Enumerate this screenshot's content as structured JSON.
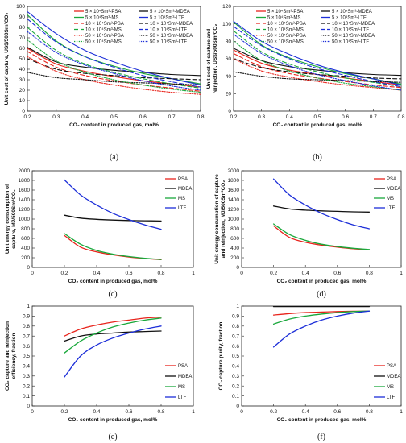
{
  "figure": {
    "palette": {
      "PSA": "#e8241c",
      "MDEA": "#111111",
      "MS": "#19a83b",
      "LTF": "#1c2ed8"
    }
  },
  "chart_data": [
    {
      "id": "a",
      "panel_label": "(a)",
      "type": "line",
      "xlabel": "CO₂ content in produced gas, mol%",
      "ylabel": "Unit cost of capture, US$/500Sm³CO₂",
      "xlim": [
        0.2,
        0.8
      ],
      "ylim": [
        0,
        100
      ],
      "xticks": [
        0.2,
        0.3,
        0.4,
        0.5,
        0.6,
        0.7,
        0.8
      ],
      "yticks": [
        0,
        10,
        20,
        30,
        40,
        50,
        60,
        70,
        80,
        90,
        100
      ],
      "x": [
        0.2,
        0.3,
        0.4,
        0.5,
        0.6,
        0.7,
        0.8
      ],
      "legend": {
        "position": "top",
        "columns": 2
      },
      "series": [
        {
          "name": "5 × 10⁴Sm³-PSA",
          "group": "PSA",
          "dash": "solid",
          "values": [
            60,
            45,
            38,
            33,
            29,
            26,
            23
          ]
        },
        {
          "name": "5 × 10⁴Sm³-MDEA",
          "group": "MDEA",
          "dash": "solid",
          "values": [
            61,
            47,
            42,
            39,
            37,
            35,
            34
          ]
        },
        {
          "name": "5 × 10⁴Sm³-MS",
          "group": "MS",
          "dash": "solid",
          "values": [
            92,
            67,
            52,
            43,
            36,
            31,
            26
          ]
        },
        {
          "name": "5 × 10⁴Sm³-LTF",
          "group": "LTF",
          "dash": "solid",
          "values": [
            95,
            74,
            58,
            47,
            38,
            31,
            25
          ]
        },
        {
          "name": "10 × 10⁴Sm³-PSA",
          "group": "PSA",
          "dash": "dash",
          "values": [
            57,
            42,
            34,
            29,
            25,
            22,
            19
          ]
        },
        {
          "name": "10 × 10⁴Sm³-MDEA",
          "group": "MDEA",
          "dash": "dash",
          "values": [
            50,
            40,
            36,
            34,
            32,
            31,
            30
          ]
        },
        {
          "name": "10 × 10⁴Sm³-MS",
          "group": "MS",
          "dash": "dash",
          "values": [
            80,
            58,
            45,
            37,
            31,
            26,
            22
          ]
        },
        {
          "name": "10 × 10⁴Sm³-LTF",
          "group": "LTF",
          "dash": "dash",
          "values": [
            88,
            66,
            52,
            42,
            34,
            28,
            23
          ]
        },
        {
          "name": "50 × 10⁴Sm³-PSA",
          "group": "PSA",
          "dash": "dot",
          "values": [
            52,
            38,
            30,
            25,
            21,
            18,
            16
          ]
        },
        {
          "name": "50 × 10⁴Sm³-MDEA",
          "group": "MDEA",
          "dash": "dot",
          "values": [
            37,
            32,
            30,
            28,
            27,
            26,
            25
          ]
        },
        {
          "name": "50 × 10⁴Sm³-MS",
          "group": "MS",
          "dash": "dot",
          "values": [
            68,
            48,
            37,
            30,
            25,
            21,
            18
          ]
        },
        {
          "name": "50 × 10⁴Sm³-LTF",
          "group": "LTF",
          "dash": "dot",
          "values": [
            76,
            56,
            44,
            36,
            29,
            24,
            20
          ]
        }
      ]
    },
    {
      "id": "b",
      "panel_label": "(b)",
      "type": "line",
      "xlabel": "CO₂ content in produced gas, mol%",
      "ylabel": "Unit cost of capture and reinjection, US$/500Sm³CO₂",
      "xlim": [
        0.2,
        0.8
      ],
      "ylim": [
        0,
        120
      ],
      "xticks": [
        0.2,
        0.3,
        0.4,
        0.5,
        0.6,
        0.7,
        0.8
      ],
      "yticks": [
        0,
        20,
        40,
        60,
        80,
        100,
        120
      ],
      "x": [
        0.2,
        0.3,
        0.4,
        0.5,
        0.6,
        0.7,
        0.8
      ],
      "legend": {
        "position": "top",
        "columns": 2
      },
      "series": [
        {
          "name": "5 × 10⁴Sm³-PSA",
          "group": "PSA",
          "dash": "solid",
          "values": [
            70,
            55,
            47,
            42,
            38,
            34,
            30
          ]
        },
        {
          "name": "5 × 10⁴Sm³-MDEA",
          "group": "MDEA",
          "dash": "solid",
          "values": [
            72,
            58,
            51,
            47,
            44,
            42,
            41
          ]
        },
        {
          "name": "5 × 10⁴Sm³-MS",
          "group": "MS",
          "dash": "solid",
          "values": [
            102,
            76,
            61,
            51,
            43,
            37,
            31
          ]
        },
        {
          "name": "5 × 10⁴Sm³-LTF",
          "group": "LTF",
          "dash": "solid",
          "values": [
            103,
            80,
            65,
            53,
            44,
            37,
            30
          ]
        },
        {
          "name": "10 × 10⁴Sm³-PSA",
          "group": "PSA",
          "dash": "dash",
          "values": [
            66,
            51,
            43,
            38,
            34,
            30,
            27
          ]
        },
        {
          "name": "10 × 10⁴Sm³-MDEA",
          "group": "MDEA",
          "dash": "dash",
          "values": [
            60,
            50,
            45,
            42,
            40,
            38,
            37
          ]
        },
        {
          "name": "10 × 10⁴Sm³-MS",
          "group": "MS",
          "dash": "dash",
          "values": [
            92,
            68,
            54,
            45,
            38,
            33,
            28
          ]
        },
        {
          "name": "10 × 10⁴Sm³-LTF",
          "group": "LTF",
          "dash": "dash",
          "values": [
            97,
            75,
            60,
            49,
            41,
            34,
            28
          ]
        },
        {
          "name": "50 × 10⁴Sm³-PSA",
          "group": "PSA",
          "dash": "dot",
          "values": [
            60,
            46,
            39,
            34,
            30,
            27,
            24
          ]
        },
        {
          "name": "50 × 10⁴Sm³-MDEA",
          "group": "MDEA",
          "dash": "dot",
          "values": [
            45,
            40,
            37,
            36,
            35,
            34,
            33
          ]
        },
        {
          "name": "50 × 10⁴Sm³-MS",
          "group": "MS",
          "dash": "dot",
          "values": [
            80,
            58,
            46,
            38,
            32,
            28,
            24
          ]
        },
        {
          "name": "50 × 10⁴Sm³-LTF",
          "group": "LTF",
          "dash": "dot",
          "values": [
            88,
            66,
            52,
            42,
            35,
            29,
            24
          ]
        }
      ]
    },
    {
      "id": "c",
      "panel_label": "(c)",
      "type": "line",
      "xlabel": "CO₂ content in produced gas, mol%",
      "ylabel": "Unit energy consumption of capture, MJ/500Sm³CO₂",
      "xlim": [
        0,
        1
      ],
      "ylim": [
        0,
        2000
      ],
      "xticks": [
        0,
        0.2,
        0.4,
        0.6,
        0.8,
        1
      ],
      "yticks": [
        0,
        200,
        400,
        600,
        800,
        1000,
        1200,
        1400,
        1600,
        1800,
        2000
      ],
      "x": [
        0.2,
        0.3,
        0.4,
        0.5,
        0.6,
        0.7,
        0.8
      ],
      "legend": {
        "position": "right",
        "columns": 1
      },
      "series": [
        {
          "name": "PSA",
          "group": "PSA",
          "dash": "solid",
          "values": [
            660,
            420,
            320,
            260,
            215,
            185,
            160
          ]
        },
        {
          "name": "MDEA",
          "group": "MDEA",
          "dash": "solid",
          "values": [
            1080,
            1020,
            995,
            980,
            970,
            965,
            960
          ]
        },
        {
          "name": "MS",
          "group": "MS",
          "dash": "solid",
          "values": [
            700,
            480,
            350,
            275,
            225,
            190,
            165
          ]
        },
        {
          "name": "LTF",
          "group": "LTF",
          "dash": "solid",
          "values": [
            1810,
            1500,
            1290,
            1120,
            990,
            880,
            790
          ]
        }
      ]
    },
    {
      "id": "d",
      "panel_label": "(d)",
      "type": "line",
      "xlabel": "CO₂ content in produced gas, mol%",
      "ylabel": "Unit energy consumption of capture and reinjection, MJ/500Sm³CO₂",
      "xlim": [
        0,
        1
      ],
      "ylim": [
        0,
        2000
      ],
      "xticks": [
        0,
        0.2,
        0.4,
        0.6,
        0.8,
        1
      ],
      "yticks": [
        0,
        200,
        400,
        600,
        800,
        1000,
        1200,
        1400,
        1600,
        1800,
        2000
      ],
      "x": [
        0.2,
        0.3,
        0.4,
        0.5,
        0.6,
        0.7,
        0.8
      ],
      "legend": {
        "position": "right",
        "columns": 1
      },
      "series": [
        {
          "name": "PSA",
          "group": "PSA",
          "dash": "solid",
          "values": [
            860,
            620,
            520,
            460,
            420,
            385,
            360
          ]
        },
        {
          "name": "MDEA",
          "group": "MDEA",
          "dash": "solid",
          "values": [
            1270,
            1210,
            1185,
            1170,
            1160,
            1150,
            1145
          ]
        },
        {
          "name": "MS",
          "group": "MS",
          "dash": "solid",
          "values": [
            900,
            680,
            560,
            480,
            430,
            395,
            370
          ]
        },
        {
          "name": "LTF",
          "group": "LTF",
          "dash": "solid",
          "values": [
            1830,
            1500,
            1290,
            1120,
            990,
            880,
            800
          ]
        }
      ]
    },
    {
      "id": "e",
      "panel_label": "(e)",
      "type": "line",
      "xlabel": "CO₂ content in produced gas, mol%",
      "ylabel": "CO₂ capture and reinjection efficiency, fraction",
      "xlim": [
        0,
        1
      ],
      "ylim": [
        0,
        1
      ],
      "xticks": [
        0,
        0.2,
        0.4,
        0.6,
        0.8,
        1
      ],
      "yticks": [
        0,
        0.1,
        0.2,
        0.3,
        0.4,
        0.5,
        0.6,
        0.7,
        0.8,
        0.9,
        1
      ],
      "x": [
        0.2,
        0.3,
        0.4,
        0.5,
        0.6,
        0.7,
        0.8
      ],
      "legend": {
        "position": "right",
        "columns": 1
      },
      "series": [
        {
          "name": "PSA",
          "group": "PSA",
          "dash": "solid",
          "values": [
            0.7,
            0.77,
            0.81,
            0.84,
            0.86,
            0.88,
            0.89
          ]
        },
        {
          "name": "MDEA",
          "group": "MDEA",
          "dash": "solid",
          "values": [
            0.65,
            0.7,
            0.72,
            0.73,
            0.74,
            0.745,
            0.75
          ]
        },
        {
          "name": "MS",
          "group": "MS",
          "dash": "solid",
          "values": [
            0.53,
            0.65,
            0.73,
            0.79,
            0.83,
            0.86,
            0.88
          ]
        },
        {
          "name": "LTF",
          "group": "LTF",
          "dash": "solid",
          "values": [
            0.29,
            0.5,
            0.61,
            0.68,
            0.73,
            0.77,
            0.8
          ]
        }
      ]
    },
    {
      "id": "f",
      "panel_label": "(f)",
      "type": "line",
      "xlabel": "CO₂ content in produced gas, mol%",
      "ylabel": "CO₂ capture purity, fraction",
      "xlim": [
        0,
        1
      ],
      "ylim": [
        0,
        1
      ],
      "xticks": [
        0,
        0.2,
        0.4,
        0.6,
        0.8,
        1
      ],
      "yticks": [
        0,
        0.1,
        0.2,
        0.3,
        0.4,
        0.5,
        0.6,
        0.7,
        0.8,
        0.9,
        1
      ],
      "x": [
        0.2,
        0.3,
        0.4,
        0.5,
        0.6,
        0.7,
        0.8
      ],
      "legend": {
        "position": "right",
        "columns": 1
      },
      "series": [
        {
          "name": "PSA",
          "group": "PSA",
          "dash": "solid",
          "values": [
            0.91,
            0.925,
            0.935,
            0.94,
            0.945,
            0.948,
            0.95
          ]
        },
        {
          "name": "MDEA",
          "group": "MDEA",
          "dash": "solid",
          "values": [
            0.995,
            0.995,
            0.995,
            0.995,
            0.995,
            0.995,
            0.995
          ]
        },
        {
          "name": "MS",
          "group": "MS",
          "dash": "solid",
          "values": [
            0.82,
            0.87,
            0.9,
            0.92,
            0.935,
            0.945,
            0.95
          ]
        },
        {
          "name": "LTF",
          "group": "LTF",
          "dash": "solid",
          "values": [
            0.59,
            0.72,
            0.8,
            0.86,
            0.9,
            0.93,
            0.95
          ]
        }
      ]
    }
  ]
}
